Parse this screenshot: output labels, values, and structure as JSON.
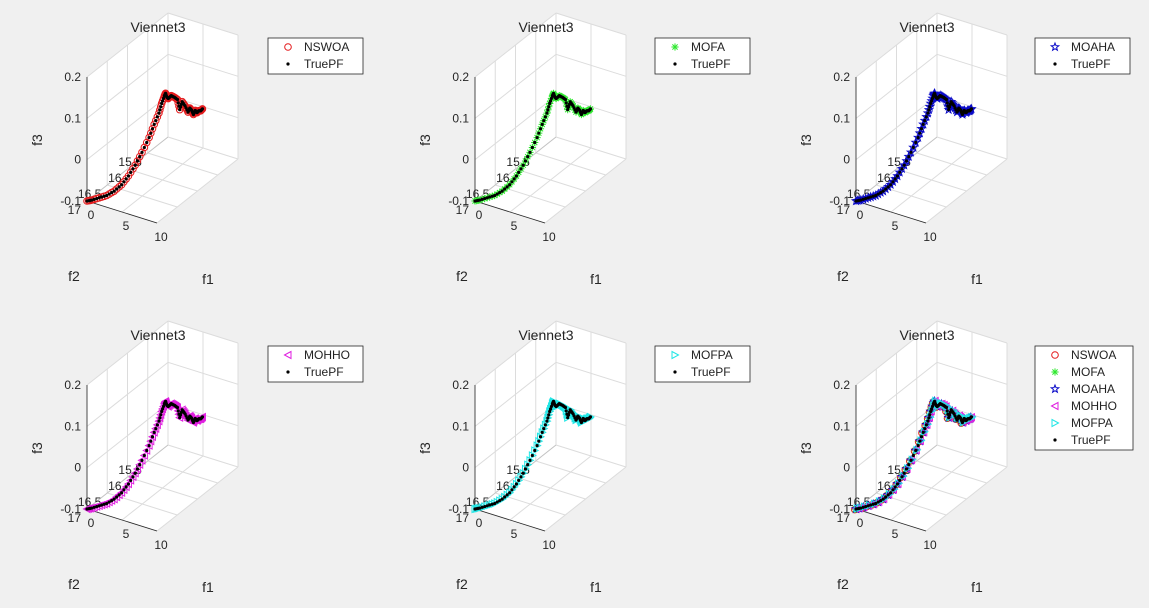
{
  "figure": {
    "background": "#f0f0f0"
  },
  "series_styles": {
    "NSWOA": {
      "marker": "circle",
      "color": "#e41a1c"
    },
    "MOFA": {
      "marker": "asterisk",
      "color": "#2ee82e"
    },
    "MOAHA": {
      "marker": "star",
      "color": "#0a0ac8"
    },
    "MOHHO": {
      "marker": "triangle-left",
      "color": "#e01fe0"
    },
    "MOFPA": {
      "marker": "triangle-right",
      "color": "#22e6e6"
    },
    "TruePF": {
      "marker": "dot",
      "color": "#000000"
    }
  },
  "front": {
    "comment_free": true,
    "f1": [
      0.0,
      0.1,
      0.3,
      0.5,
      0.7,
      0.9,
      1.0,
      1.1,
      1.2,
      1.35,
      1.5,
      1.6,
      1.7,
      1.8,
      1.85,
      1.9,
      2.0,
      2.2,
      2.5,
      2.8,
      3.0,
      3.3,
      3.6,
      3.9,
      4.1,
      4.3,
      4.5,
      4.7,
      4.9,
      5.1,
      5.3,
      5.5
    ],
    "f2": [
      17.0,
      16.9,
      16.75,
      16.6,
      16.45,
      16.3,
      16.15,
      16.0,
      15.85,
      15.7,
      15.6,
      15.5,
      15.45,
      15.4,
      15.38,
      15.36,
      15.34,
      15.3,
      15.27,
      15.25,
      15.23,
      15.22,
      15.2,
      15.18,
      15.17,
      15.16,
      15.15,
      15.14,
      15.13,
      15.12,
      15.11,
      15.1
    ],
    "f3": [
      -0.1,
      -0.105,
      -0.11,
      -0.115,
      -0.115,
      -0.11,
      -0.1,
      -0.085,
      -0.065,
      -0.04,
      -0.015,
      0.005,
      0.025,
      0.04,
      0.045,
      0.035,
      0.03,
      0.035,
      0.03,
      0.025,
      0.0,
      0.02,
      0.01,
      -0.005,
      0.005,
      0.0,
      -0.01,
      0.0,
      -0.005,
      0.0,
      0.0,
      0.005
    ]
  },
  "chart_data": [
    {
      "type": "scatter",
      "title": "Viennet3",
      "xlabel": "f1",
      "ylabel": "f2",
      "zlabel": "f3",
      "xlim": [
        0,
        10
      ],
      "ylim": [
        15,
        17
      ],
      "zlim": [
        -0.1,
        0.2
      ],
      "x_ticks": [
        "0",
        "5",
        "10"
      ],
      "y_ticks": [
        "15.5",
        "16",
        "16.5",
        "17"
      ],
      "z_ticks": [
        "-0.1",
        "0",
        "0.1",
        "0.2"
      ],
      "grid": true,
      "legend_position": "top-right",
      "legend": [
        "NSWOA",
        "TruePF"
      ],
      "series": [
        {
          "name": "NSWOA"
        },
        {
          "name": "TruePF"
        }
      ]
    },
    {
      "type": "scatter",
      "title": "Viennet3",
      "xlabel": "f1",
      "ylabel": "f2",
      "zlabel": "f3",
      "xlim": [
        0,
        10
      ],
      "ylim": [
        15,
        17
      ],
      "zlim": [
        -0.1,
        0.2
      ],
      "x_ticks": [
        "0",
        "5",
        "10"
      ],
      "y_ticks": [
        "15.5",
        "16",
        "16.5",
        "17"
      ],
      "z_ticks": [
        "-0.1",
        "0",
        "0.1",
        "0.2"
      ],
      "grid": true,
      "legend_position": "top-right",
      "legend": [
        "MOFA",
        "TruePF"
      ],
      "series": [
        {
          "name": "MOFA"
        },
        {
          "name": "TruePF"
        }
      ]
    },
    {
      "type": "scatter",
      "title": "Viennet3",
      "xlabel": "f1",
      "ylabel": "f2",
      "zlabel": "f3",
      "xlim": [
        0,
        10
      ],
      "ylim": [
        15,
        17
      ],
      "zlim": [
        -0.1,
        0.2
      ],
      "x_ticks": [
        "0",
        "5",
        "10"
      ],
      "y_ticks": [
        "15.5",
        "16",
        "16.5",
        "17"
      ],
      "z_ticks": [
        "-0.1",
        "0",
        "0.1",
        "0.2"
      ],
      "grid": true,
      "legend_position": "top-right",
      "legend": [
        "MOAHA",
        "TruePF"
      ],
      "series": [
        {
          "name": "MOAHA"
        },
        {
          "name": "TruePF"
        }
      ]
    },
    {
      "type": "scatter",
      "title": "Viennet3",
      "xlabel": "f1",
      "ylabel": "f2",
      "zlabel": "f3",
      "xlim": [
        0,
        10
      ],
      "ylim": [
        15,
        17
      ],
      "zlim": [
        -0.1,
        0.2
      ],
      "x_ticks": [
        "0",
        "5",
        "10"
      ],
      "y_ticks": [
        "15.5",
        "16",
        "16.5",
        "17"
      ],
      "z_ticks": [
        "-0.1",
        "0",
        "0.1",
        "0.2"
      ],
      "grid": true,
      "legend_position": "top-right",
      "legend": [
        "MOHHO",
        "TruePF"
      ],
      "series": [
        {
          "name": "MOHHO"
        },
        {
          "name": "TruePF"
        }
      ]
    },
    {
      "type": "scatter",
      "title": "Viennet3",
      "xlabel": "f1",
      "ylabel": "f2",
      "zlabel": "f3",
      "xlim": [
        0,
        10
      ],
      "ylim": [
        15,
        17
      ],
      "zlim": [
        -0.1,
        0.2
      ],
      "x_ticks": [
        "0",
        "5",
        "10"
      ],
      "y_ticks": [
        "15.5",
        "16",
        "16.5",
        "17"
      ],
      "z_ticks": [
        "-0.1",
        "0",
        "0.1",
        "0.2"
      ],
      "grid": true,
      "legend_position": "top-right",
      "legend": [
        "MOFPA",
        "TruePF"
      ],
      "series": [
        {
          "name": "MOFPA"
        },
        {
          "name": "TruePF"
        }
      ]
    },
    {
      "type": "scatter",
      "title": "Viennet3",
      "xlabel": "f1",
      "ylabel": "f2",
      "zlabel": "f3",
      "xlim": [
        0,
        10
      ],
      "ylim": [
        15,
        17
      ],
      "zlim": [
        -0.1,
        0.2
      ],
      "x_ticks": [
        "0",
        "5",
        "10"
      ],
      "y_ticks": [
        "15.5",
        "16",
        "16.5",
        "17"
      ],
      "z_ticks": [
        "-0.1",
        "0",
        "0.1",
        "0.2"
      ],
      "grid": true,
      "legend_position": "top-right",
      "legend": [
        "NSWOA",
        "MOFA",
        "MOAHA",
        "MOHHO",
        "MOFPA",
        "TruePF"
      ],
      "series": [
        {
          "name": "NSWOA"
        },
        {
          "name": "MOFA"
        },
        {
          "name": "MOAHA"
        },
        {
          "name": "MOHHO"
        },
        {
          "name": "MOFPA"
        },
        {
          "name": "TruePF"
        }
      ]
    }
  ]
}
